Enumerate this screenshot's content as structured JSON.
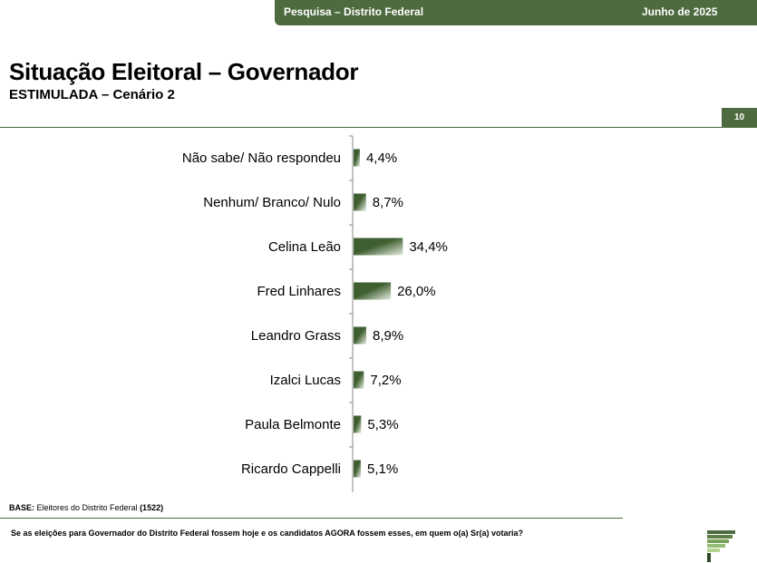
{
  "header": {
    "survey": "Pesquisa – Distrito Federal",
    "date": "Junho de 2025"
  },
  "page": {
    "title": "Situação Eleitoral – Governador",
    "subtitle": "ESTIMULADA – Cenário 2",
    "page_number": "10"
  },
  "footer": {
    "base_label": "BASE:",
    "base_text": " Eleitores do Distrito Federal ",
    "base_count": "(1522)",
    "question": "Se as eleições para Governador do Distrito Federal fossem hoje e os candidatos AGORA fossem esses, em quem o(a)  Sr(a) votaria?"
  },
  "colors": {
    "brand_green": "#4d6b3f",
    "bar_dark": "#3f5f31",
    "bar_light": "#e6ede0"
  },
  "chart_data": {
    "type": "bar",
    "orientation": "horizontal",
    "categories": [
      "Não sabe/ Não respondeu",
      "Nenhum/ Branco/ Nulo",
      "Celina Leão",
      "Fred Linhares",
      "Leandro Grass",
      "Izalci Lucas",
      "Paula Belmonte",
      "Ricardo Cappelli"
    ],
    "values": [
      4.4,
      8.7,
      34.4,
      26.0,
      8.9,
      7.2,
      5.3,
      5.1
    ],
    "labels": [
      "4,4%",
      "8,7%",
      "34,4%",
      "26,0%",
      "8,9%",
      "7,2%",
      "5,3%",
      "5,1%"
    ],
    "unit": "%",
    "xlim": [
      0,
      100
    ],
    "grid": false,
    "legend": "none"
  }
}
